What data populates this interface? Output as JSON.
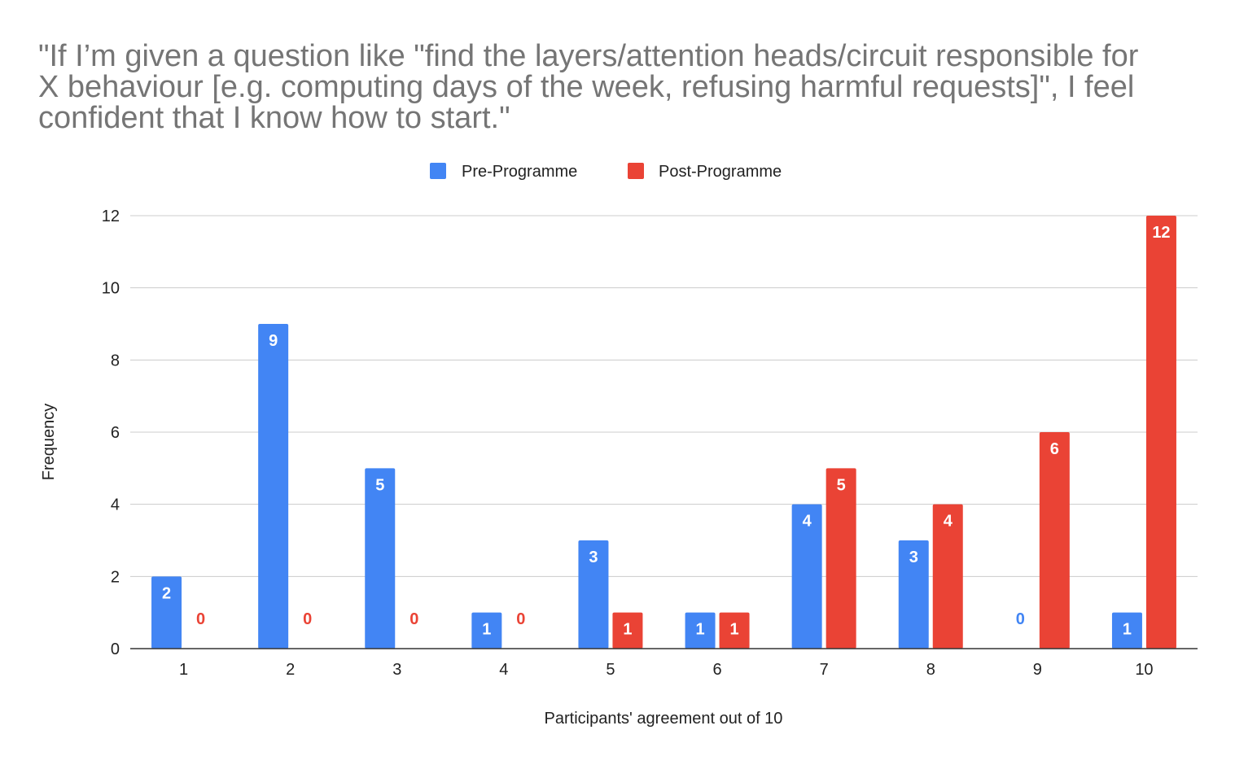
{
  "chart_data": {
    "type": "bar",
    "title_lines": [
      "\"If I’m given a question like \"find the layers/attention heads/circuit responsible for",
      "X behaviour [e.g. computing days of the week, refusing harmful requests]\", I feel",
      "confident that I know how to start.\""
    ],
    "xlabel": "Participants' agreement out of 10",
    "ylabel": "Frequency",
    "categories": [
      "1",
      "2",
      "3",
      "4",
      "5",
      "6",
      "7",
      "8",
      "9",
      "10"
    ],
    "series": [
      {
        "name": "Pre-Programme",
        "color": "#4285f4",
        "values": [
          2,
          9,
          5,
          1,
          3,
          1,
          4,
          3,
          0,
          1
        ]
      },
      {
        "name": "Post-Programme",
        "color": "#ea4335",
        "values": [
          0,
          0,
          0,
          0,
          1,
          1,
          5,
          4,
          6,
          12
        ]
      }
    ],
    "ylim": [
      0,
      12
    ],
    "yticks": [
      0,
      2,
      4,
      6,
      8,
      10,
      12
    ],
    "grid": true,
    "legend_position": "top-center"
  }
}
